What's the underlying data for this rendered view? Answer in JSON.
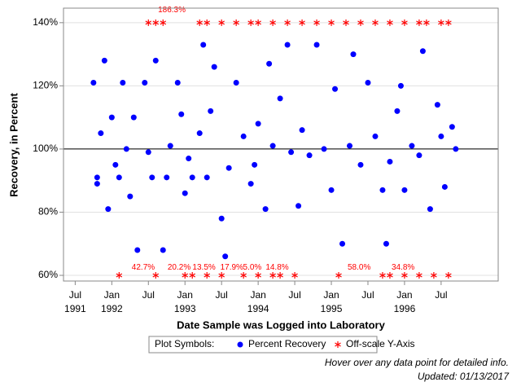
{
  "chart_data": {
    "type": "scatter",
    "y_label": "Recovery, in Percent",
    "x_label": "Date Sample was Logged into Laboratory",
    "xlim": [
      1991.34,
      1997.28
    ],
    "ylim": [
      58.2,
      144.6
    ],
    "xticks": [
      {
        "value": 1991.5,
        "label": "Jul"
      },
      {
        "value": 1992,
        "label": "Jan"
      },
      {
        "value": 1992.5,
        "label": "Jul"
      },
      {
        "value": 1993,
        "label": "Jan"
      },
      {
        "value": 1993.5,
        "label": "Jul"
      },
      {
        "value": 1994,
        "label": "Jan"
      },
      {
        "value": 1994.5,
        "label": "Jul"
      },
      {
        "value": 1995,
        "label": "Jan"
      },
      {
        "value": 1995.5,
        "label": "Jul"
      },
      {
        "value": 1996,
        "label": "Jan"
      },
      {
        "value": 1996.5,
        "label": "Jul"
      }
    ],
    "xtick_years": [
      {
        "value": 1991.5,
        "label": "1991"
      },
      {
        "value": 1992,
        "label": "1992"
      },
      {
        "value": 1993,
        "label": "1993"
      },
      {
        "value": 1994,
        "label": "1994"
      },
      {
        "value": 1995,
        "label": "1995"
      },
      {
        "value": 1996,
        "label": "1996"
      }
    ],
    "yticks": [
      {
        "value": 60,
        "label": "60%"
      },
      {
        "value": 80,
        "label": "80%"
      },
      {
        "value": 100,
        "label": "100%"
      },
      {
        "value": 120,
        "label": "120%"
      },
      {
        "value": 140,
        "label": "140%"
      }
    ],
    "grid": true,
    "reference_line": 100,
    "legend_title": "Plot Symbols:",
    "series": [
      {
        "name": "Percent Recovery",
        "color": "#0000ff",
        "marker": "circle",
        "x": [
          1991.75,
          1991.8,
          1991.8,
          1991.85,
          1991.9,
          1991.95,
          1992.0,
          1992.05,
          1992.1,
          1992.15,
          1992.2,
          1992.25,
          1992.3,
          1992.35,
          1992.45,
          1992.5,
          1992.55,
          1992.6,
          1992.7,
          1992.75,
          1992.8,
          1992.9,
          1992.95,
          1993.0,
          1993.05,
          1993.1,
          1993.2,
          1993.25,
          1993.3,
          1993.35,
          1993.4,
          1993.5,
          1993.55,
          1993.6,
          1993.7,
          1993.8,
          1993.9,
          1993.95,
          1994.0,
          1994.1,
          1994.15,
          1994.2,
          1994.3,
          1994.4,
          1994.45,
          1994.55,
          1994.6,
          1994.7,
          1994.8,
          1994.9,
          1995.0,
          1995.05,
          1995.15,
          1995.25,
          1995.3,
          1995.4,
          1995.5,
          1995.6,
          1995.7,
          1995.75,
          1995.8,
          1995.9,
          1995.95,
          1996.0,
          1996.1,
          1996.2,
          1996.25,
          1996.35,
          1996.45,
          1996.5,
          1996.55,
          1996.65,
          1996.7
        ],
        "values": [
          121,
          91,
          89,
          105,
          128,
          81,
          110,
          95,
          91,
          121,
          100,
          85,
          110,
          68,
          121,
          99,
          91,
          128,
          68,
          91,
          101,
          121,
          111,
          86,
          97,
          91,
          105,
          133,
          91,
          112,
          126,
          78,
          66,
          94,
          121,
          104,
          89,
          95,
          108,
          81,
          127,
          101,
          116,
          133,
          99,
          82,
          106,
          98,
          133,
          100,
          87,
          119,
          70,
          101,
          130,
          95,
          121,
          104,
          87,
          70,
          96,
          112,
          120,
          87,
          101,
          98,
          131,
          81,
          114,
          104,
          88,
          107,
          100
        ]
      },
      {
        "name": "Off-scale Y-Axis",
        "color": "#ff0000",
        "marker": "asterisk",
        "x": [
          1992.5,
          1992.6,
          1992.7,
          1993.2,
          1993.3,
          1993.5,
          1993.7,
          1993.9,
          1994.0,
          1994.2,
          1994.4,
          1994.6,
          1994.8,
          1995.0,
          1995.2,
          1995.4,
          1995.6,
          1995.8,
          1996.0,
          1996.2,
          1996.3,
          1996.5,
          1996.6,
          1992.1,
          1992.6,
          1993.0,
          1993.1,
          1993.3,
          1993.5,
          1993.8,
          1994.0,
          1994.2,
          1994.3,
          1994.5,
          1995.1,
          1995.7,
          1995.8,
          1996.0,
          1996.2,
          1996.4,
          1996.6
        ],
        "values": [
          140,
          140,
          140,
          140,
          140,
          140,
          140,
          140,
          140,
          140,
          140,
          140,
          140,
          140,
          140,
          140,
          140,
          140,
          140,
          140,
          140,
          140,
          140,
          60,
          60,
          60,
          60,
          60,
          60,
          60,
          60,
          60,
          60,
          60,
          60,
          60,
          60,
          60,
          60,
          60,
          60
        ]
      }
    ],
    "annotations": [
      {
        "x": 1992.82,
        "y": 144,
        "text": "186.3%"
      },
      {
        "x": 1992.43,
        "y": 62.5,
        "text": "42.7%"
      },
      {
        "x": 1992.92,
        "y": 62.5,
        "text": "20.2%"
      },
      {
        "x": 1993.26,
        "y": 62.5,
        "text": "13.5%"
      },
      {
        "x": 1993.64,
        "y": 62.5,
        "text": "17.9%"
      },
      {
        "x": 1993.92,
        "y": 62.5,
        "text": "5.0%"
      },
      {
        "x": 1994.26,
        "y": 62.5,
        "text": "14.8%"
      },
      {
        "x": 1995.38,
        "y": 62.5,
        "text": "58.0%"
      },
      {
        "x": 1995.98,
        "y": 62.5,
        "text": "34.8%"
      }
    ],
    "footnotes": [
      "Hover over any data point for detailed info.",
      "Updated: 01/13/2017"
    ]
  }
}
